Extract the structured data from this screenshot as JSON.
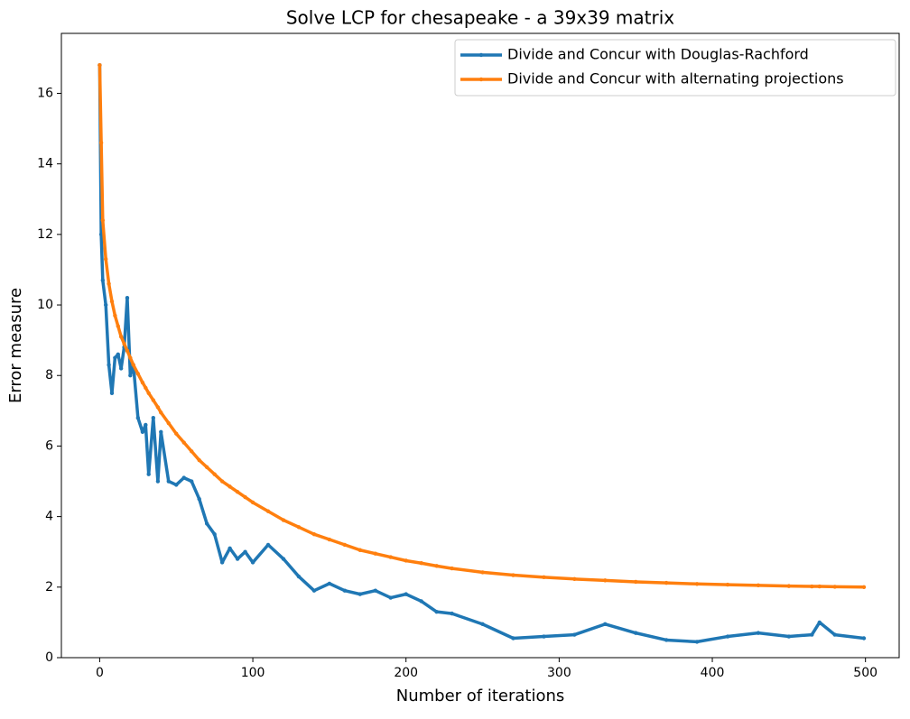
{
  "chart_data": {
    "type": "line",
    "title": "Solve LCP for chesapeake - a 39x39 matrix",
    "x_label": "Number of iterations",
    "y_label": "Error measure",
    "x": [
      0,
      1,
      2,
      4,
      6,
      8,
      10,
      12,
      14,
      16,
      18,
      20,
      22,
      25,
      28,
      30,
      32,
      35,
      38,
      40,
      45,
      50,
      55,
      60,
      65,
      70,
      75,
      80,
      85,
      90,
      95,
      100,
      110,
      120,
      130,
      140,
      150,
      160,
      170,
      180,
      190,
      200,
      210,
      220,
      230,
      250,
      270,
      290,
      310,
      330,
      350,
      370,
      390,
      410,
      430,
      450,
      465,
      470,
      480,
      499
    ],
    "series": [
      {
        "name": "Divide and Concur with Douglas-Rachford",
        "color": "#1f77b4",
        "values": [
          16.8,
          12.0,
          10.7,
          10.0,
          8.3,
          7.5,
          8.5,
          8.6,
          8.2,
          8.8,
          10.2,
          8.0,
          8.3,
          6.8,
          6.4,
          6.6,
          5.2,
          6.8,
          5.0,
          6.4,
          5.0,
          4.9,
          5.1,
          5.0,
          4.5,
          3.8,
          3.5,
          2.7,
          3.1,
          2.8,
          3.0,
          2.7,
          3.2,
          2.8,
          2.3,
          1.9,
          2.1,
          1.9,
          1.8,
          1.9,
          1.7,
          1.8,
          1.6,
          1.3,
          1.25,
          0.95,
          0.55,
          0.6,
          0.65,
          0.95,
          0.7,
          0.5,
          0.45,
          0.6,
          0.7,
          0.6,
          0.65,
          1.0,
          0.65,
          0.55
        ]
      },
      {
        "name": "Divide and Concur with alternating projections",
        "color": "#ff7f0e",
        "values": [
          16.8,
          14.6,
          12.4,
          11.3,
          10.6,
          10.1,
          9.7,
          9.4,
          9.1,
          8.9,
          8.7,
          8.5,
          8.3,
          8.05,
          7.8,
          7.65,
          7.5,
          7.3,
          7.1,
          6.95,
          6.65,
          6.35,
          6.1,
          5.85,
          5.6,
          5.4,
          5.2,
          5.0,
          4.85,
          4.7,
          4.55,
          4.4,
          4.15,
          3.9,
          3.7,
          3.5,
          3.35,
          3.2,
          3.05,
          2.95,
          2.85,
          2.75,
          2.68,
          2.6,
          2.53,
          2.42,
          2.34,
          2.28,
          2.23,
          2.19,
          2.15,
          2.12,
          2.09,
          2.07,
          2.05,
          2.03,
          2.02,
          2.02,
          2.01,
          2.0
        ]
      }
    ],
    "xlim": [
      -25,
      522
    ],
    "xticks": [
      0,
      100,
      200,
      300,
      400,
      500
    ],
    "ylim": [
      0,
      17.7
    ],
    "yticks": [
      0,
      2,
      4,
      6,
      8,
      10,
      12,
      14,
      16
    ],
    "legend": "upper right"
  }
}
